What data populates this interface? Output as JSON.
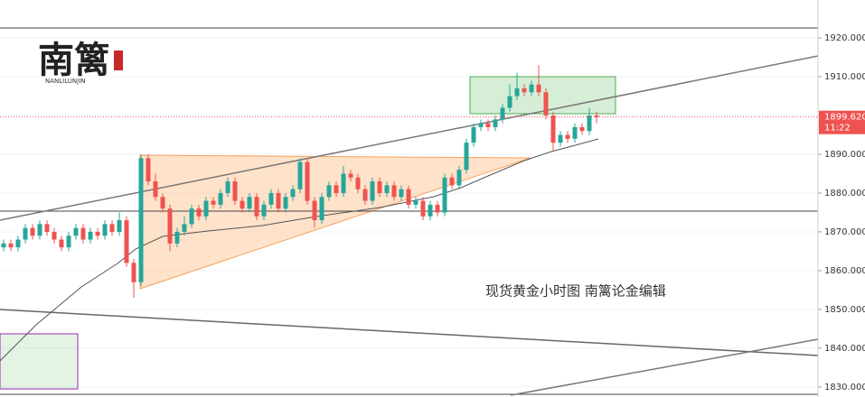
{
  "chart_data": {
    "type": "candlestick",
    "annotation": "现货黄金小时图 南篱论金编辑",
    "logo": {
      "title": "南篱",
      "subtitle": "NANLILUNJIN"
    },
    "last_price": {
      "value": 1899.62,
      "label": "1899.620"
    },
    "countdown": "11:22",
    "up_color": "#26a69a",
    "down_color": "#ef5350",
    "ylim": [
      1827.4,
      1929.8
    ],
    "yticks": [
      {
        "value": 1830,
        "label": "1830.000"
      },
      {
        "value": 1840,
        "label": "1840.000"
      },
      {
        "value": 1850,
        "label": "1850.000"
      },
      {
        "value": 1860,
        "label": "1860.000"
      },
      {
        "value": 1870,
        "label": "1870.000"
      },
      {
        "value": 1880,
        "label": "1880.000"
      },
      {
        "value": 1890,
        "label": "1890.000"
      },
      {
        "value": 1900,
        "label": "1900.000"
      },
      {
        "value": 1910,
        "label": "1910.000"
      },
      {
        "value": 1920,
        "label": "1920.000"
      }
    ],
    "open": [
      1866,
      1867,
      1866,
      1868,
      1871,
      1869,
      1872,
      1870,
      1868,
      1866,
      1869,
      1871,
      1868,
      1870,
      1869,
      1872,
      1870,
      1873,
      1862,
      1857,
      1889,
      1883,
      1879,
      1876,
      1867,
      1870,
      1872,
      1876,
      1874,
      1878,
      1877,
      1880,
      1883,
      1878,
      1876,
      1879,
      1874,
      1877,
      1880,
      1876,
      1879,
      1881,
      1888,
      1878,
      1873,
      1879,
      1882,
      1880,
      1885,
      1884,
      1881,
      1878,
      1883,
      1880,
      1882,
      1879,
      1881,
      1877,
      1878,
      1874,
      1877,
      1875,
      1884,
      1882,
      1886,
      1893,
      1897,
      1898,
      1897,
      1899,
      1902,
      1905,
      1907,
      1906,
      1908,
      1906,
      1900,
      1893,
      1895,
      1894,
      1897,
      1896,
      1900
    ],
    "high": [
      1868,
      1868,
      1869,
      1872,
      1872,
      1873,
      1873,
      1871,
      1869,
      1870,
      1872,
      1872,
      1871,
      1871,
      1873,
      1873,
      1875,
      1874,
      1863,
      1890,
      1890,
      1885,
      1880,
      1877,
      1871,
      1874,
      1877,
      1877,
      1879,
      1879,
      1881,
      1884,
      1884,
      1879,
      1880,
      1880,
      1878,
      1881,
      1881,
      1880,
      1882,
      1889,
      1889,
      1879,
      1880,
      1883,
      1883,
      1887,
      1886,
      1885,
      1882,
      1884,
      1884,
      1883,
      1883,
      1882,
      1882,
      1879,
      1879,
      1878,
      1878,
      1885,
      1885,
      1887,
      1894,
      1898,
      1899,
      1899,
      1900,
      1903,
      1908,
      1911,
      1908,
      1909,
      1913,
      1907,
      1901,
      1896,
      1896,
      1898,
      1898,
      1902,
      1901
    ],
    "low": [
      1865,
      1865,
      1865,
      1867,
      1868,
      1868,
      1869,
      1867,
      1865,
      1865,
      1868,
      1867,
      1867,
      1868,
      1868,
      1869,
      1869,
      1861,
      1853,
      1856,
      1882,
      1878,
      1875,
      1865,
      1866,
      1869,
      1871,
      1873,
      1873,
      1876,
      1876,
      1879,
      1877,
      1875,
      1875,
      1873,
      1873,
      1876,
      1875,
      1875,
      1878,
      1880,
      1877,
      1871,
      1872,
      1878,
      1879,
      1879,
      1883,
      1880,
      1877,
      1877,
      1879,
      1879,
      1878,
      1878,
      1876,
      1876,
      1873,
      1873,
      1874,
      1874,
      1881,
      1881,
      1885,
      1892,
      1896,
      1896,
      1896,
      1898,
      1901,
      1904,
      1905,
      1905,
      1905,
      1899,
      1891,
      1892,
      1893,
      1893,
      1895,
      1895,
      1898
    ],
    "close": [
      1867,
      1866,
      1868,
      1871,
      1869,
      1872,
      1870,
      1868,
      1866,
      1869,
      1871,
      1868,
      1870,
      1869,
      1872,
      1870,
      1873,
      1862,
      1857,
      1889,
      1883,
      1879,
      1876,
      1867,
      1870,
      1872,
      1876,
      1874,
      1878,
      1877,
      1880,
      1883,
      1878,
      1876,
      1879,
      1874,
      1877,
      1880,
      1876,
      1879,
      1881,
      1888,
      1878,
      1873,
      1879,
      1882,
      1880,
      1885,
      1884,
      1881,
      1878,
      1883,
      1880,
      1882,
      1879,
      1881,
      1877,
      1878,
      1874,
      1877,
      1875,
      1884,
      1882,
      1886,
      1893,
      1897,
      1898,
      1897,
      1899,
      1902,
      1905,
      1907,
      1906,
      1908,
      1906,
      1900,
      1893,
      1895,
      1894,
      1897,
      1896,
      1900,
      1899.6
    ]
  }
}
